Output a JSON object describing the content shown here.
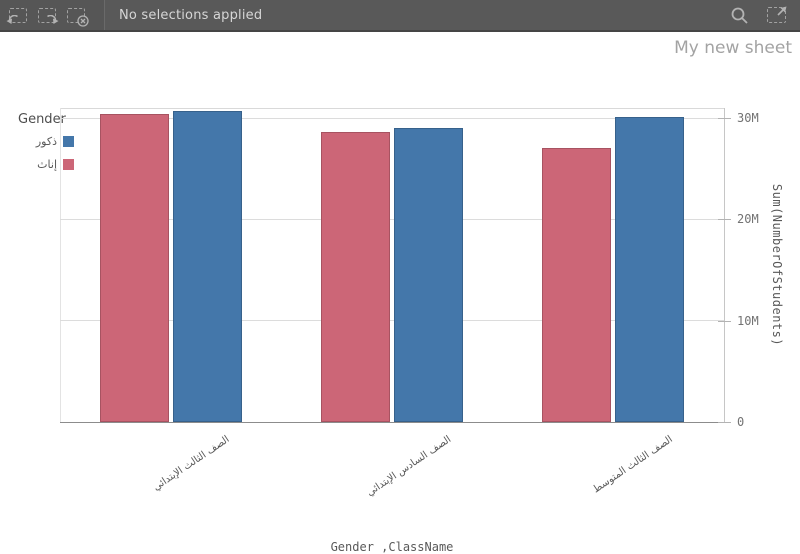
{
  "toolbar": {
    "message": "No selections applied",
    "left_icons": [
      {
        "name": "undo"
      },
      {
        "name": "redo"
      },
      {
        "name": "clear-selections"
      }
    ],
    "right_icons": [
      {
        "name": "search"
      },
      {
        "name": "selections-tool"
      }
    ]
  },
  "sheet": {
    "title": "My new sheet"
  },
  "chart_data": {
    "type": "bar",
    "title": "",
    "categories": [
      "الصف الثالث الإبتدائي",
      "الصف السادس الإبتدائي",
      "الصف الثالث المتوسط"
    ],
    "series": [
      {
        "name": "إناث",
        "color": "#cc6677",
        "values": [
          30400000,
          28600000,
          27100000
        ]
      },
      {
        "name": "ذكور",
        "color": "#4477aa",
        "values": [
          30700000,
          29000000,
          30100000
        ]
      }
    ],
    "legend": {
      "title": "Gender",
      "position": "top-left",
      "items": [
        {
          "label": "ذكور",
          "color": "#4477aa"
        },
        {
          "label": "إناث",
          "color": "#cc6677"
        }
      ]
    },
    "xlabel": "Gender ,ClassName",
    "ylabel": "Sum(NumberOfStudents)",
    "yticks": [
      {
        "value": 0,
        "label": "0"
      },
      {
        "value": 10000000,
        "label": "10M"
      },
      {
        "value": 20000000,
        "label": "20M"
      },
      {
        "value": 30000000,
        "label": "30M"
      }
    ],
    "ylim": [
      0,
      31000000
    ],
    "grid": true,
    "axis_side": "right"
  }
}
